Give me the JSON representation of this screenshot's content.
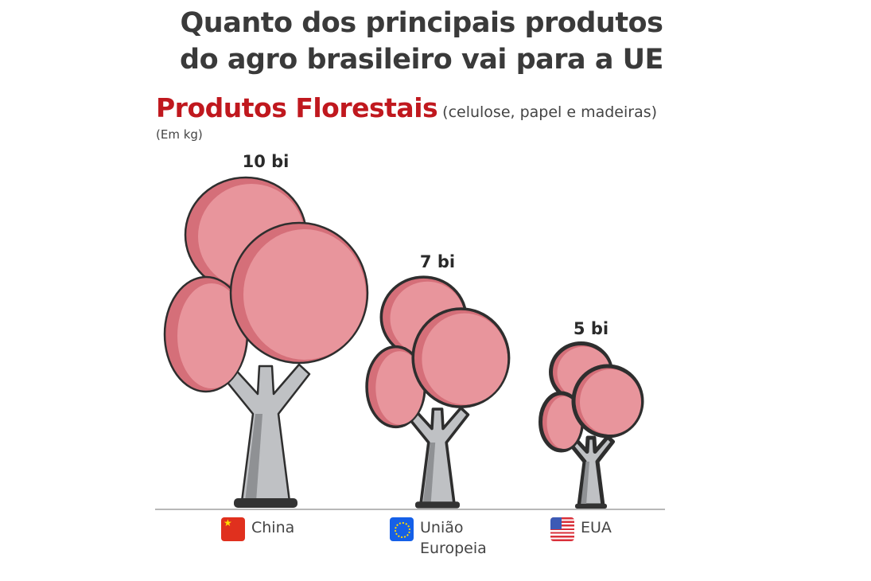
{
  "header": {
    "title_line1": "Quanto dos principais produtos",
    "title_line2": "do agro brasileiro vai para a UE"
  },
  "chart_data": {
    "type": "pictogram-bar",
    "title": "Produtos Florestais",
    "subtitle": "(celulose, papel e madeiras)",
    "ylabel": "(Em kg)",
    "categories": [
      "China",
      "União Europeia",
      "EUA"
    ],
    "values": [
      10,
      7,
      5
    ],
    "value_labels": [
      "10 bi",
      "7 bi",
      "5 bi"
    ],
    "unit": "bilhões de kg",
    "flag_icons": [
      "china-flag-icon",
      "eu-flag-icon",
      "usa-flag-icon"
    ],
    "colors": {
      "title": "#c0181e",
      "crown": "#e8959c",
      "crown_shadow": "#d56f79",
      "trunk": "#bfc1c4",
      "outline": "#2e2e2e",
      "ground": "#a0a0a0"
    }
  }
}
